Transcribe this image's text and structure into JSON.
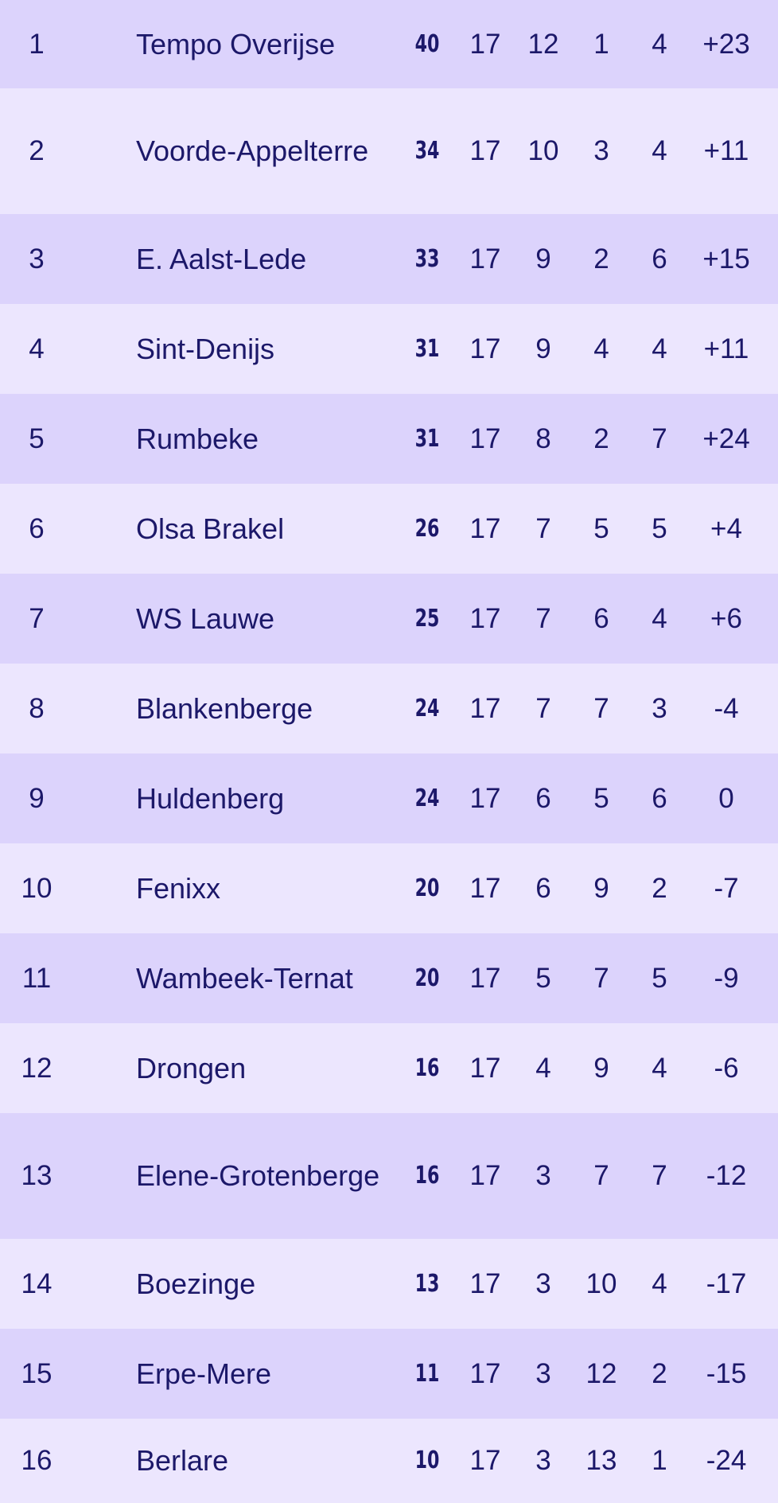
{
  "standings": {
    "rows": [
      {
        "pos": "1",
        "team": "Tempo Overijse",
        "pts": "40",
        "played": "17",
        "won": "12",
        "drawn": "1",
        "lost": "4",
        "gd": "+23"
      },
      {
        "pos": "2",
        "team": "Voorde-Appelterre",
        "team_lines": [
          "Voorde-",
          "Appelterre"
        ],
        "pts": "34",
        "played": "17",
        "won": "10",
        "drawn": "3",
        "lost": "4",
        "gd": "+11"
      },
      {
        "pos": "3",
        "team": "E. Aalst-Lede",
        "pts": "33",
        "played": "17",
        "won": "9",
        "drawn": "2",
        "lost": "6",
        "gd": "+15"
      },
      {
        "pos": "4",
        "team": "Sint-Denijs",
        "pts": "31",
        "played": "17",
        "won": "9",
        "drawn": "4",
        "lost": "4",
        "gd": "+11"
      },
      {
        "pos": "5",
        "team": "Rumbeke",
        "pts": "31",
        "played": "17",
        "won": "8",
        "drawn": "2",
        "lost": "7",
        "gd": "+24"
      },
      {
        "pos": "6",
        "team": "Olsa Brakel",
        "pts": "26",
        "played": "17",
        "won": "7",
        "drawn": "5",
        "lost": "5",
        "gd": "+4"
      },
      {
        "pos": "7",
        "team": "WS Lauwe",
        "pts": "25",
        "played": "17",
        "won": "7",
        "drawn": "6",
        "lost": "4",
        "gd": "+6"
      },
      {
        "pos": "8",
        "team": "Blankenberge",
        "pts": "24",
        "played": "17",
        "won": "7",
        "drawn": "7",
        "lost": "3",
        "gd": "-4"
      },
      {
        "pos": "9",
        "team": "Huldenberg",
        "pts": "24",
        "played": "17",
        "won": "6",
        "drawn": "5",
        "lost": "6",
        "gd": "0"
      },
      {
        "pos": "10",
        "team": "Fenixx",
        "pts": "20",
        "played": "17",
        "won": "6",
        "drawn": "9",
        "lost": "2",
        "gd": "-7"
      },
      {
        "pos": "11",
        "team": "Wambeek-Ternat",
        "pts": "20",
        "played": "17",
        "won": "5",
        "drawn": "7",
        "lost": "5",
        "gd": "-9"
      },
      {
        "pos": "12",
        "team": "Drongen",
        "pts": "16",
        "played": "17",
        "won": "4",
        "drawn": "9",
        "lost": "4",
        "gd": "-6"
      },
      {
        "pos": "13",
        "team": "Elene-Grotenberge",
        "team_lines": [
          "Elene-",
          "Grotenberge"
        ],
        "pts": "16",
        "played": "17",
        "won": "3",
        "drawn": "7",
        "lost": "7",
        "gd": "-12"
      },
      {
        "pos": "14",
        "team": "Boezinge",
        "pts": "13",
        "played": "17",
        "won": "3",
        "drawn": "10",
        "lost": "4",
        "gd": "-17"
      },
      {
        "pos": "15",
        "team": "Erpe-Mere",
        "pts": "11",
        "played": "17",
        "won": "3",
        "drawn": "12",
        "lost": "2",
        "gd": "-15"
      },
      {
        "pos": "16",
        "team": "Berlare",
        "pts": "10",
        "played": "17",
        "won": "3",
        "drawn": "13",
        "lost": "1",
        "gd": "-24"
      }
    ]
  },
  "colors": {
    "row_odd": "#dcd3fc",
    "row_even": "#ece6fe",
    "text": "#1c1869"
  }
}
